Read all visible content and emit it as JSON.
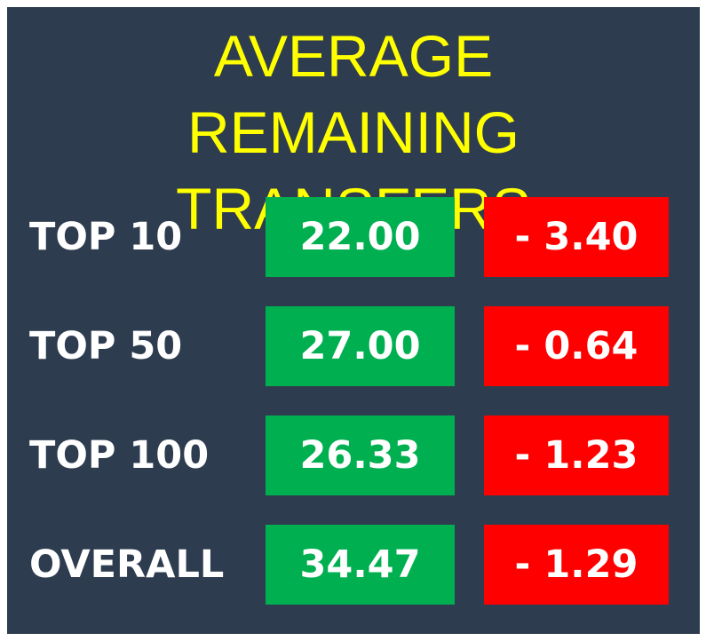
{
  "header": {
    "title": "AVERAGE REMAINING TRANSFERS"
  },
  "table": {
    "rows": [
      [
        "TOP 10",
        "22.00",
        "- 3.40"
      ],
      [
        "TOP 50",
        "27.00",
        "- 0.64"
      ],
      [
        "TOP 100",
        "26.33",
        "- 1.23"
      ],
      [
        "OVERALL",
        "34.47",
        "- 1.29"
      ]
    ]
  }
}
